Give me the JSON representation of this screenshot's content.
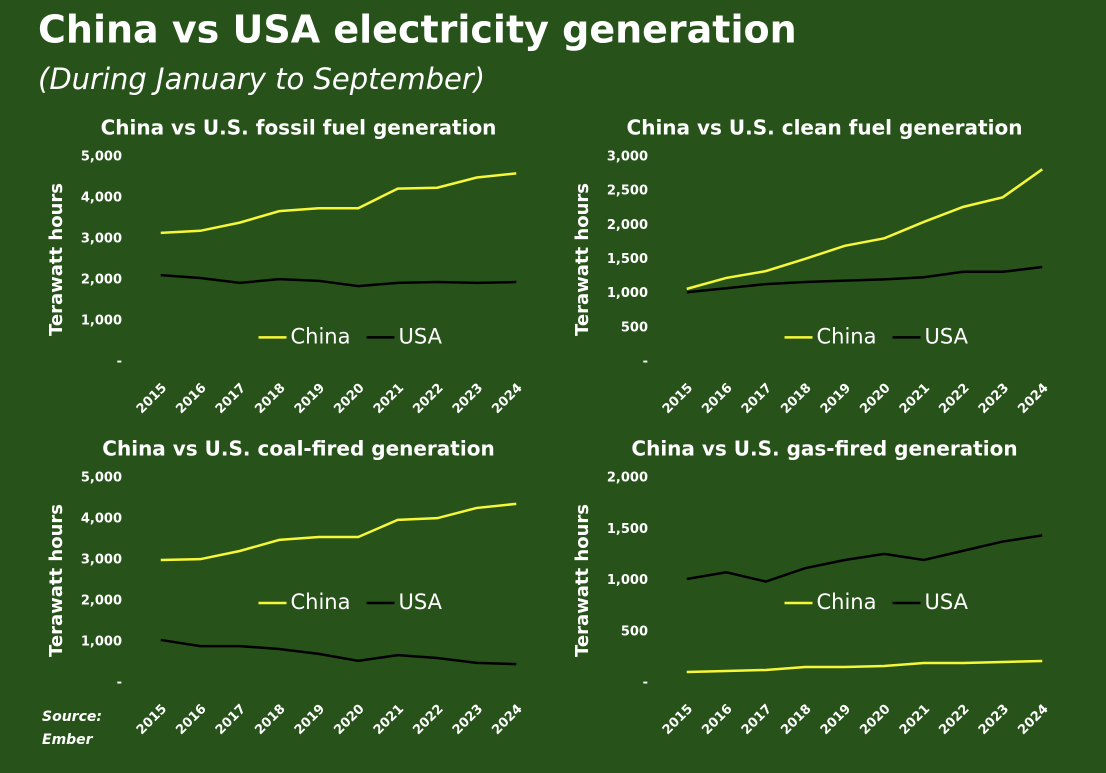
{
  "title": "China vs USA electricity generation",
  "subtitle": "(During January to September)",
  "source": [
    "Source:",
    "Ember"
  ],
  "chart_data": [
    {
      "type": "line",
      "title": "China vs U.S. fossil fuel generation",
      "ylabel": "Terawatt hours",
      "categories": [
        "2015",
        "2016",
        "2017",
        "2018",
        "2019",
        "2020",
        "2021",
        "2022",
        "2023",
        "2024"
      ],
      "series": [
        {
          "name": "China",
          "color": "#f7f73a",
          "values": [
            3150,
            3200,
            3400,
            3680,
            3750,
            3750,
            4230,
            4250,
            4500,
            4600
          ]
        },
        {
          "name": "USA",
          "color": "#000000",
          "values": [
            2120,
            2050,
            1930,
            2020,
            1980,
            1850,
            1930,
            1950,
            1930,
            1950
          ]
        }
      ],
      "ylim": [
        0,
        5000
      ],
      "yticks": [
        {
          "value": 0,
          "label": "-"
        },
        {
          "value": 1000,
          "label": "1,000"
        },
        {
          "value": 2000,
          "label": "2,000"
        },
        {
          "value": 3000,
          "label": "3,000"
        },
        {
          "value": 4000,
          "label": "4,000"
        },
        {
          "value": 5000,
          "label": "5,000"
        }
      ],
      "legend": "lower center"
    },
    {
      "type": "line",
      "title": "China vs U.S. clean fuel generation",
      "ylabel": "Terawatt hours",
      "categories": [
        "2015",
        "2016",
        "2017",
        "2018",
        "2019",
        "2020",
        "2021",
        "2022",
        "2023",
        "2024"
      ],
      "series": [
        {
          "name": "China",
          "color": "#f7f73a",
          "values": [
            1070,
            1230,
            1330,
            1510,
            1700,
            1810,
            2050,
            2270,
            2410,
            2820
          ]
        },
        {
          "name": "USA",
          "color": "#000000",
          "values": [
            1020,
            1080,
            1140,
            1170,
            1190,
            1210,
            1240,
            1320,
            1320,
            1390
          ]
        }
      ],
      "ylim": [
        0,
        3000
      ],
      "yticks": [
        {
          "value": 0,
          "label": "-"
        },
        500,
        {
          "value": 1000,
          "label": "1,000"
        },
        {
          "value": 1500,
          "label": "1,500"
        },
        {
          "value": 2000,
          "label": "2,000"
        },
        {
          "value": 2500,
          "label": "2,500"
        },
        {
          "value": 3000,
          "label": "3,000"
        }
      ],
      "legend": "lower center"
    },
    {
      "type": "line",
      "title": "China vs U.S. coal-fired generation",
      "ylabel": "Terawatt hours",
      "categories": [
        "2015",
        "2016",
        "2017",
        "2018",
        "2019",
        "2020",
        "2021",
        "2022",
        "2023",
        "2024"
      ],
      "series": [
        {
          "name": "China",
          "color": "#f7f73a",
          "values": [
            3000,
            3020,
            3220,
            3490,
            3560,
            3560,
            3980,
            4020,
            4270,
            4370
          ]
        },
        {
          "name": "USA",
          "color": "#000000",
          "values": [
            1050,
            900,
            900,
            830,
            710,
            540,
            680,
            610,
            490,
            460
          ]
        }
      ],
      "ylim": [
        0,
        5000
      ],
      "yticks": [
        {
          "value": 0,
          "label": "-"
        },
        {
          "value": 1000,
          "label": "1,000"
        },
        {
          "value": 2000,
          "label": "2,000"
        },
        {
          "value": 3000,
          "label": "3,000"
        },
        {
          "value": 4000,
          "label": "4,000"
        },
        {
          "value": 5000,
          "label": "5,000"
        }
      ],
      "legend": "center"
    },
    {
      "type": "line",
      "title": "China vs U.S. gas-fired generation",
      "ylabel": "Terawatt hours",
      "categories": [
        "2015",
        "2016",
        "2017",
        "2018",
        "2019",
        "2020",
        "2021",
        "2022",
        "2023",
        "2024"
      ],
      "series": [
        {
          "name": "China",
          "color": "#f7f73a",
          "values": [
            107,
            117,
            127,
            156,
            156,
            166,
            195,
            195,
            205,
            215
          ]
        },
        {
          "name": "USA",
          "color": "#000000",
          "values": [
            1015,
            1080,
            990,
            1120,
            1200,
            1260,
            1200,
            1290,
            1380,
            1440
          ]
        }
      ],
      "ylim": [
        0,
        2000
      ],
      "yticks": [
        {
          "value": 0,
          "label": "-"
        },
        500,
        {
          "value": 1000,
          "label": "1,000"
        },
        {
          "value": 1500,
          "label": "1,500"
        },
        {
          "value": 2000,
          "label": "2,000"
        }
      ],
      "legend": "center"
    }
  ]
}
